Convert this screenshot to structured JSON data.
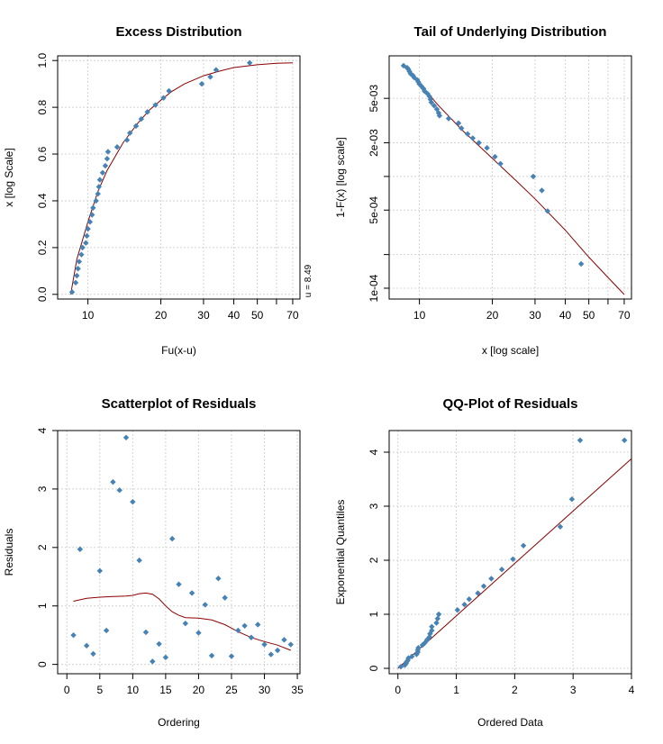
{
  "chart_data": [
    {
      "type": "scatter",
      "title": "Excess Distribution",
      "xlabel": "Fu(x-u)",
      "ylabel": "x [log Scale]",
      "annotation": "u = 8.49",
      "xscale": "log",
      "xlim": [
        7.5,
        75
      ],
      "ylim": [
        -0.02,
        1.02
      ],
      "xticks": [
        10,
        20,
        30,
        40,
        50,
        70
      ],
      "xtick_labels": [
        "10",
        "20",
        "30",
        "40",
        "50",
        "70"
      ],
      "xgrid_extra": [
        60
      ],
      "yticks": [
        0.0,
        0.2,
        0.4,
        0.6,
        0.8,
        1.0
      ],
      "ytick_labels": [
        "0.0",
        "0.2",
        "0.4",
        "0.6",
        "0.8",
        "1.0"
      ],
      "grid": true,
      "points": [
        [
          8.6,
          0.01
        ],
        [
          8.9,
          0.05
        ],
        [
          9.0,
          0.08
        ],
        [
          9.1,
          0.11
        ],
        [
          9.2,
          0.14
        ],
        [
          9.4,
          0.17
        ],
        [
          9.5,
          0.2
        ],
        [
          9.8,
          0.22
        ],
        [
          9.9,
          0.25
        ],
        [
          10.0,
          0.28
        ],
        [
          10.2,
          0.31
        ],
        [
          10.4,
          0.34
        ],
        [
          10.5,
          0.37
        ],
        [
          10.8,
          0.4
        ],
        [
          11.0,
          0.43
        ],
        [
          11.1,
          0.46
        ],
        [
          11.2,
          0.49
        ],
        [
          11.5,
          0.52
        ],
        [
          11.8,
          0.55
        ],
        [
          12.0,
          0.58
        ],
        [
          12.1,
          0.61
        ],
        [
          13.2,
          0.63
        ],
        [
          14.5,
          0.66
        ],
        [
          14.9,
          0.69
        ],
        [
          15.8,
          0.72
        ],
        [
          16.6,
          0.75
        ],
        [
          17.6,
          0.78
        ],
        [
          19.0,
          0.81
        ],
        [
          20.5,
          0.84
        ],
        [
          21.6,
          0.87
        ],
        [
          29.5,
          0.9
        ],
        [
          32.0,
          0.93
        ],
        [
          33.8,
          0.96
        ],
        [
          46.5,
          0.99
        ]
      ],
      "curve": [
        [
          8.49,
          0.0
        ],
        [
          9,
          0.15
        ],
        [
          10,
          0.31
        ],
        [
          11,
          0.44
        ],
        [
          12,
          0.53
        ],
        [
          14,
          0.65
        ],
        [
          16,
          0.73
        ],
        [
          18,
          0.79
        ],
        [
          20,
          0.83
        ],
        [
          22,
          0.865
        ],
        [
          25,
          0.9
        ],
        [
          30,
          0.935
        ],
        [
          35,
          0.955
        ],
        [
          40,
          0.97
        ],
        [
          50,
          0.982
        ],
        [
          60,
          0.988
        ],
        [
          70,
          0.99
        ]
      ]
    },
    {
      "type": "scatter",
      "title": "Tail of Underlying Distribution",
      "xlabel": "x [log scale]",
      "ylabel": "1-F(x) [log scale]",
      "xscale": "log",
      "yscale": "log",
      "xlim": [
        7.5,
        75
      ],
      "ylim": [
        8e-05,
        0.012
      ],
      "xticks": [
        10,
        20,
        30,
        40,
        50,
        70
      ],
      "xtick_labels": [
        "10",
        "20",
        "30",
        "40",
        "50",
        "70"
      ],
      "xgrid_extra": [
        60
      ],
      "yticks": [
        0.0001,
        0.0005,
        0.002,
        0.005
      ],
      "ytick_labels": [
        "1e-04",
        "5e-04",
        "2e-03",
        "5e-03"
      ],
      "ygrid": [
        0.0001,
        0.0002,
        0.0005,
        0.001,
        0.002,
        0.005
      ],
      "grid": true,
      "points": [
        [
          8.6,
          0.0098
        ],
        [
          8.9,
          0.0094
        ],
        [
          9.0,
          0.0091
        ],
        [
          9.1,
          0.0087
        ],
        [
          9.2,
          0.0083
        ],
        [
          9.4,
          0.008
        ],
        [
          9.5,
          0.0077
        ],
        [
          9.8,
          0.0073
        ],
        [
          9.9,
          0.007
        ],
        [
          10.0,
          0.0067
        ],
        [
          10.2,
          0.0064
        ],
        [
          10.4,
          0.0061
        ],
        [
          10.5,
          0.0058
        ],
        [
          10.8,
          0.0055
        ],
        [
          11.0,
          0.0052
        ],
        [
          11.1,
          0.0049
        ],
        [
          11.2,
          0.0046
        ],
        [
          11.5,
          0.0043
        ],
        [
          11.8,
          0.004
        ],
        [
          12.0,
          0.0037
        ],
        [
          12.1,
          0.0035
        ],
        [
          13.2,
          0.0033
        ],
        [
          14.5,
          0.003
        ],
        [
          14.9,
          0.0027
        ],
        [
          15.8,
          0.0024
        ],
        [
          16.6,
          0.0022
        ],
        [
          17.6,
          0.002
        ],
        [
          19.0,
          0.0018
        ],
        [
          20.5,
          0.0015
        ],
        [
          21.6,
          0.0013
        ],
        [
          29.5,
          0.001
        ],
        [
          32.0,
          0.00075
        ],
        [
          33.8,
          0.00049
        ],
        [
          46.5,
          0.000165
        ]
      ],
      "curve": [
        [
          8.49,
          0.01
        ],
        [
          10,
          0.0068
        ],
        [
          12,
          0.0043
        ],
        [
          15,
          0.0026
        ],
        [
          20,
          0.00145
        ],
        [
          25,
          0.00092
        ],
        [
          30,
          0.00063
        ],
        [
          40,
          0.00033
        ],
        [
          50,
          0.00019
        ],
        [
          60,
          0.000125
        ],
        [
          70,
          8.8e-05
        ]
      ]
    },
    {
      "type": "scatter",
      "title": "Scatterplot of Residuals",
      "xlabel": "Ordering",
      "ylabel": "Residuals",
      "xlim": [
        -1.4,
        35.4
      ],
      "ylim": [
        -0.16,
        4.0
      ],
      "xticks": [
        0,
        5,
        10,
        15,
        20,
        25,
        30,
        35
      ],
      "xtick_labels": [
        "0",
        "5",
        "10",
        "15",
        "20",
        "25",
        "30",
        "35"
      ],
      "yticks": [
        0,
        1,
        2,
        3,
        4
      ],
      "ytick_labels": [
        "0",
        "1",
        "2",
        "3",
        "4"
      ],
      "grid": true,
      "points": [
        [
          1,
          0.5
        ],
        [
          2,
          1.97
        ],
        [
          3,
          0.32
        ],
        [
          4,
          0.18
        ],
        [
          5,
          1.6
        ],
        [
          6,
          0.58
        ],
        [
          7,
          3.12
        ],
        [
          8,
          2.98
        ],
        [
          9,
          3.88
        ],
        [
          10,
          2.78
        ],
        [
          11,
          1.78
        ],
        [
          12,
          0.55
        ],
        [
          13,
          0.05
        ],
        [
          14,
          0.35
        ],
        [
          15,
          0.12
        ],
        [
          16,
          2.15
        ],
        [
          17,
          1.37
        ],
        [
          18,
          0.7
        ],
        [
          19,
          1.22
        ],
        [
          20,
          0.54
        ],
        [
          21,
          1.02
        ],
        [
          22,
          0.15
        ],
        [
          23,
          1.47
        ],
        [
          24,
          1.14
        ],
        [
          25,
          0.14
        ],
        [
          26,
          0.58
        ],
        [
          27,
          0.66
        ],
        [
          28,
          0.46
        ],
        [
          29,
          0.68
        ],
        [
          30,
          0.34
        ],
        [
          31,
          0.17
        ],
        [
          32,
          0.24
        ],
        [
          33,
          0.42
        ],
        [
          34,
          0.34
        ]
      ],
      "curve": [
        [
          1,
          1.08
        ],
        [
          3,
          1.13
        ],
        [
          5,
          1.15
        ],
        [
          7,
          1.16
        ],
        [
          9,
          1.17
        ],
        [
          10,
          1.18
        ],
        [
          11,
          1.21
        ],
        [
          12,
          1.22
        ],
        [
          13,
          1.2
        ],
        [
          14,
          1.12
        ],
        [
          15,
          1.0
        ],
        [
          16,
          0.9
        ],
        [
          17,
          0.84
        ],
        [
          18,
          0.8
        ],
        [
          20,
          0.79
        ],
        [
          22,
          0.76
        ],
        [
          24,
          0.68
        ],
        [
          26,
          0.56
        ],
        [
          28,
          0.46
        ],
        [
          30,
          0.39
        ],
        [
          32,
          0.33
        ],
        [
          34,
          0.24
        ]
      ]
    },
    {
      "type": "scatter",
      "title": "QQ-Plot of Residuals",
      "xlabel": "Ordered Data",
      "ylabel": "Exponential Quantiles",
      "xlim": [
        -0.15,
        4.0
      ],
      "ylim": [
        -0.1,
        4.4
      ],
      "xticks": [
        0,
        1,
        2,
        3,
        4
      ],
      "xtick_labels": [
        "0",
        "1",
        "2",
        "3",
        "4"
      ],
      "yticks": [
        0,
        1,
        2,
        3,
        4
      ],
      "ytick_labels": [
        "0",
        "1",
        "2",
        "3",
        "4"
      ],
      "grid": true,
      "points": [
        [
          0.05,
          0.03
        ],
        [
          0.12,
          0.06
        ],
        [
          0.14,
          0.09
        ],
        [
          0.15,
          0.12
        ],
        [
          0.17,
          0.15
        ],
        [
          0.18,
          0.19
        ],
        [
          0.24,
          0.22
        ],
        [
          0.32,
          0.26
        ],
        [
          0.34,
          0.3
        ],
        [
          0.34,
          0.34
        ],
        [
          0.35,
          0.38
        ],
        [
          0.42,
          0.43
        ],
        [
          0.46,
          0.47
        ],
        [
          0.5,
          0.53
        ],
        [
          0.54,
          0.58
        ],
        [
          0.55,
          0.64
        ],
        [
          0.58,
          0.7
        ],
        [
          0.58,
          0.77
        ],
        [
          0.66,
          0.84
        ],
        [
          0.68,
          0.92
        ],
        [
          0.7,
          1.0
        ],
        [
          1.02,
          1.08
        ],
        [
          1.14,
          1.18
        ],
        [
          1.22,
          1.28
        ],
        [
          1.37,
          1.39
        ],
        [
          1.47,
          1.52
        ],
        [
          1.6,
          1.66
        ],
        [
          1.78,
          1.83
        ],
        [
          1.97,
          2.02
        ],
        [
          2.15,
          2.27
        ],
        [
          2.78,
          2.62
        ],
        [
          2.98,
          3.13
        ],
        [
          3.12,
          4.22
        ],
        [
          3.88,
          4.22
        ]
      ],
      "curve": [
        [
          0,
          0
        ],
        [
          4.0,
          3.88
        ]
      ]
    }
  ]
}
